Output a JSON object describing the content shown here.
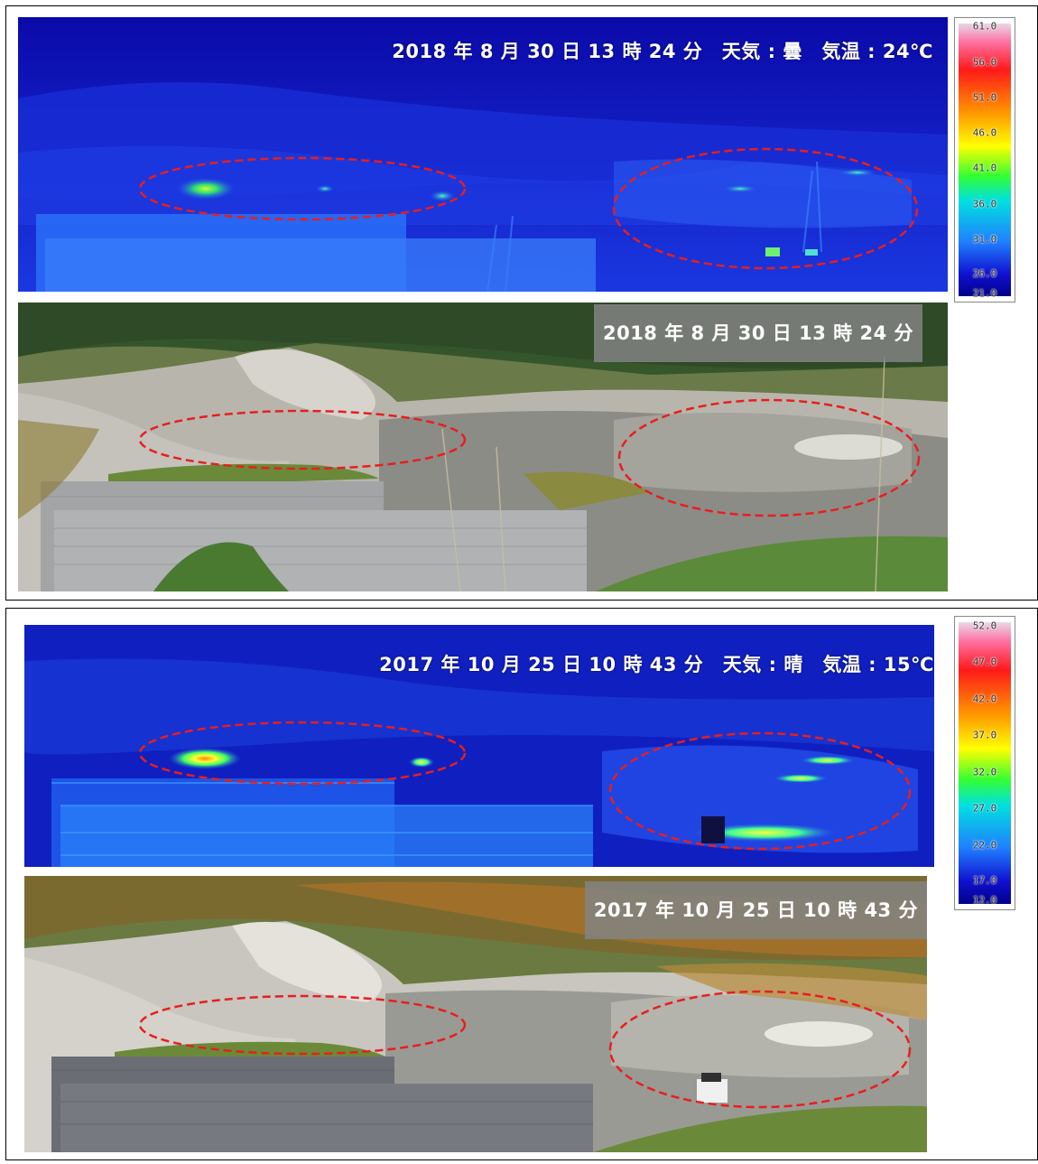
{
  "top": {
    "thermal_label": "2018 年 8 月 30 日 13 時 24 分　天気 : 曇　気温 : 24℃",
    "photo_label": "2018 年 8 月 30 日 13 時 24 分",
    "scale_ticks": [
      "61.0",
      "56.0",
      "51.0",
      "46.0",
      "41.0",
      "36.0",
      "31.0",
      "26.0",
      "21.0"
    ]
  },
  "bottom": {
    "thermal_label": "2017 年 10 月 25 日 10 時 43 分　天気 : 晴　気温 : 15℃",
    "photo_label": "2017 年 10 月 25 日 10 時 43 分",
    "scale_ticks": [
      "52.0",
      "47.0",
      "42.0",
      "37.0",
      "32.0",
      "27.0",
      "22.0",
      "17.0",
      "12.0"
    ]
  },
  "colors": {
    "thermal_bg": "#0c10b8",
    "ellipse": "#e81e1e",
    "photo_vegetation": "#3d5e2c",
    "autumn_vegetation": "#9a6a2a"
  }
}
